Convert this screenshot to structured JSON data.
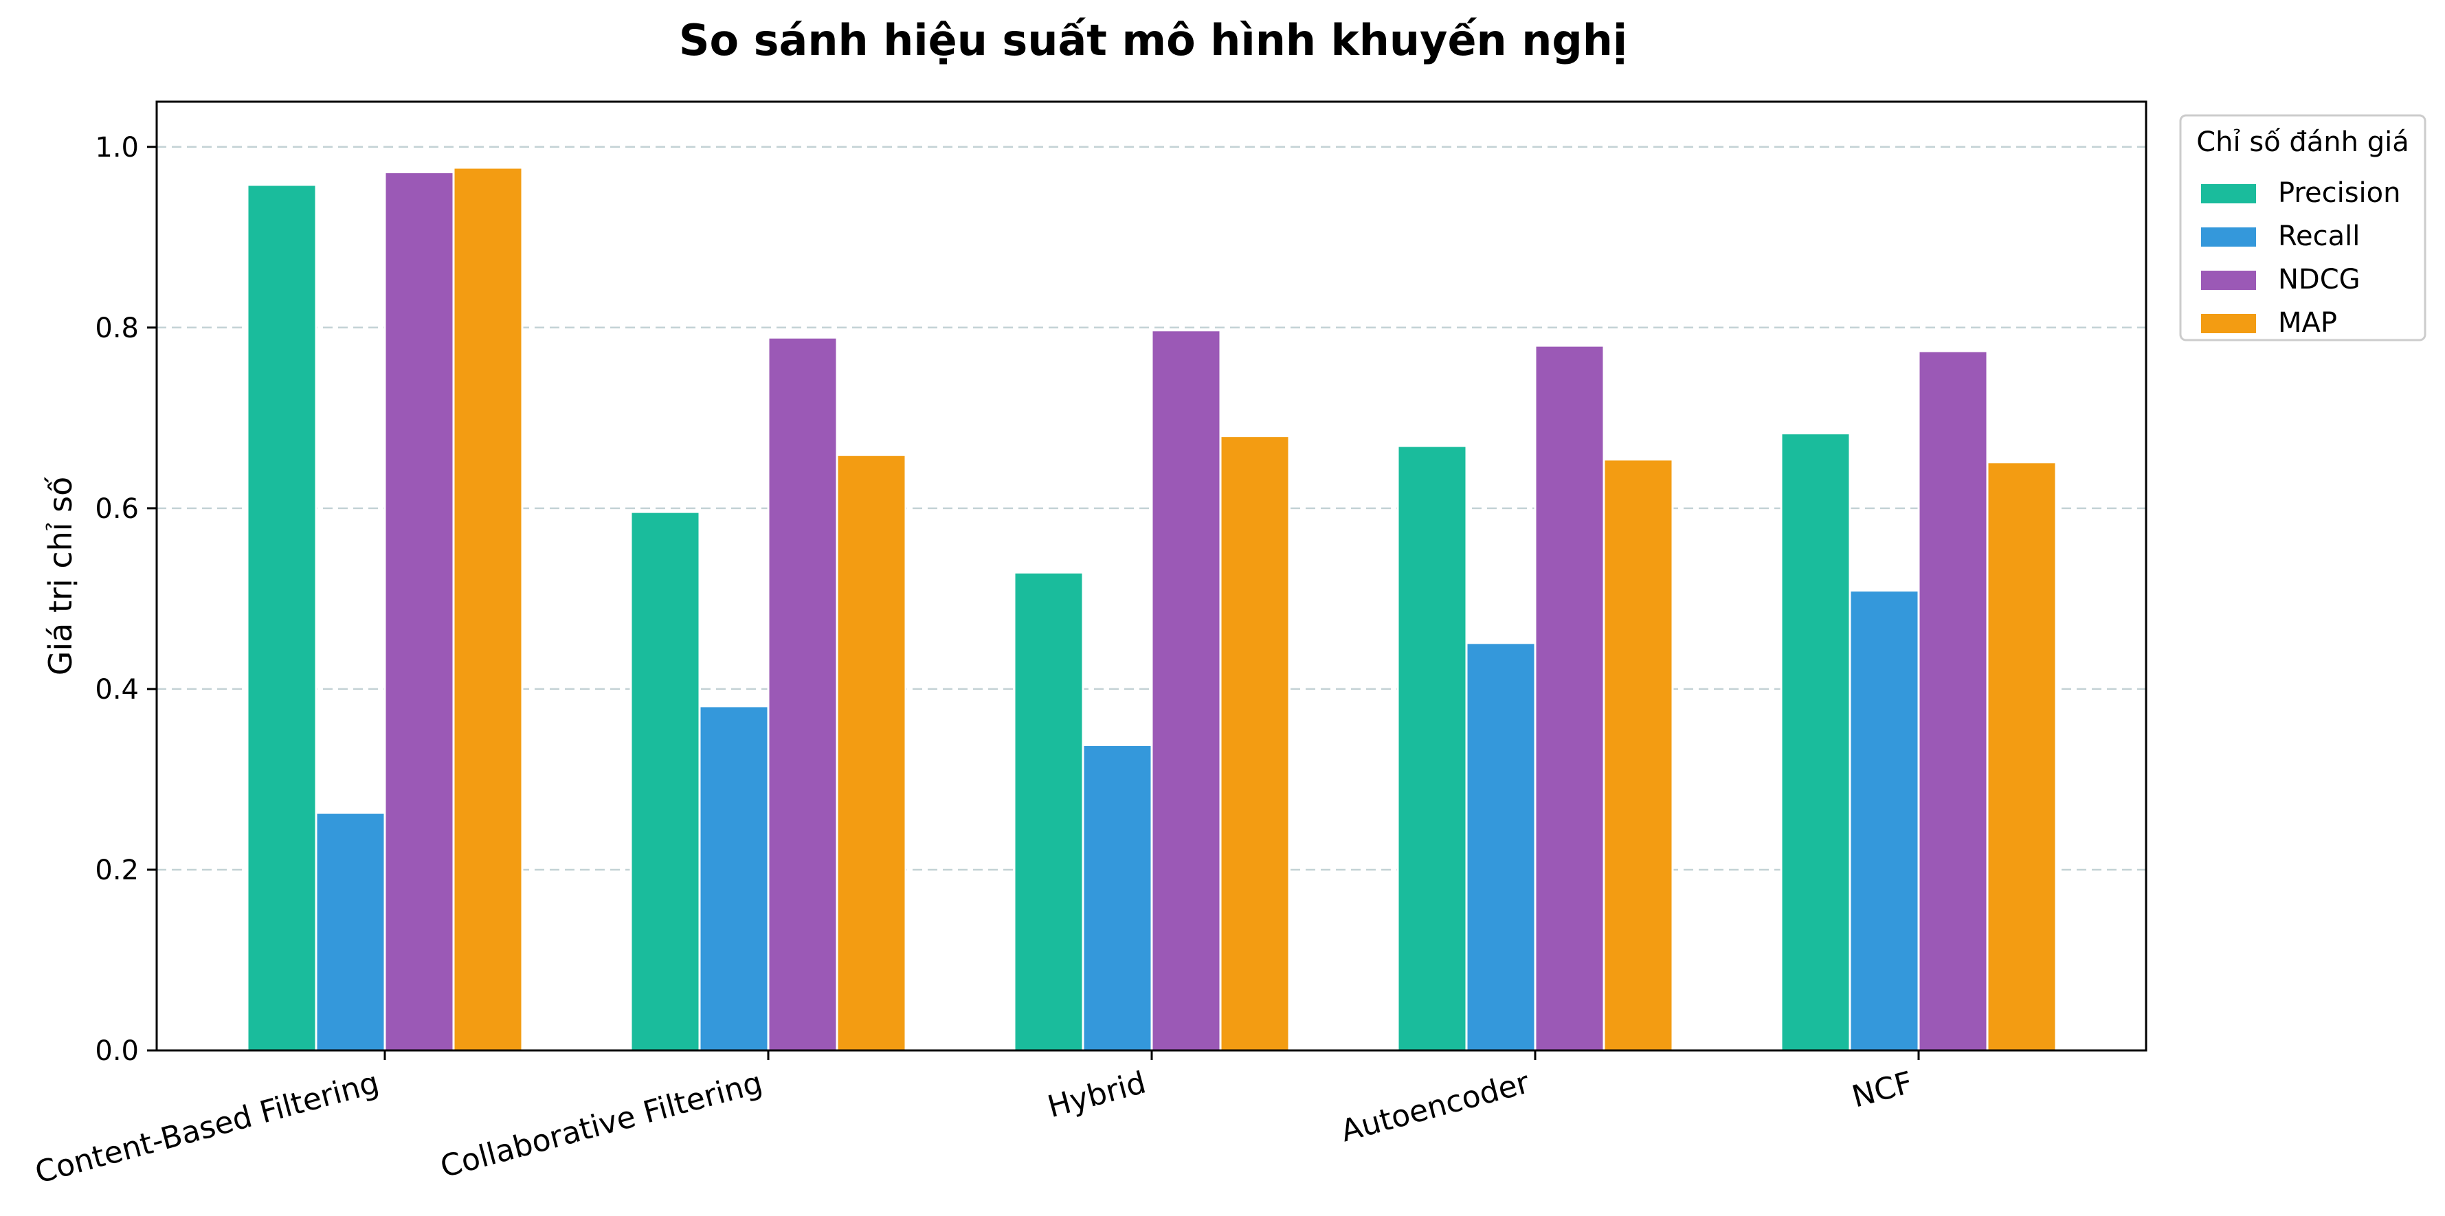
{
  "chart_data": {
    "type": "bar",
    "title": "So sánh hiệu suất mô hình khuyến nghị",
    "xlabel": "",
    "ylabel": "Giá trị chỉ số",
    "ylim": [
      0,
      1.05
    ],
    "yticks": [
      0.0,
      0.2,
      0.4,
      0.6,
      0.8,
      1.0
    ],
    "ytick_labels": [
      "0.0",
      "0.2",
      "0.4",
      "0.6",
      "0.8",
      "1.0"
    ],
    "grid": "y-dashed",
    "categories": [
      "Content-Based Filtering",
      "Collaborative Filtering",
      "Hybrid",
      "Autoencoder",
      "NCF"
    ],
    "series": [
      {
        "name": "Precision",
        "color": "#1abc9c",
        "values": [
          0.958,
          0.596,
          0.529,
          0.669,
          0.683
        ]
      },
      {
        "name": "Recall",
        "color": "#3498db",
        "values": [
          0.263,
          0.381,
          0.338,
          0.451,
          0.509
        ]
      },
      {
        "name": "NDCG",
        "color": "#9b59b6",
        "values": [
          0.972,
          0.789,
          0.797,
          0.78,
          0.774
        ]
      },
      {
        "name": "MAP",
        "color": "#f39c12",
        "values": [
          0.977,
          0.659,
          0.68,
          0.654,
          0.651
        ]
      }
    ],
    "legend": {
      "title": "Chỉ số đánh giá",
      "placement": "outside-top-right"
    }
  }
}
